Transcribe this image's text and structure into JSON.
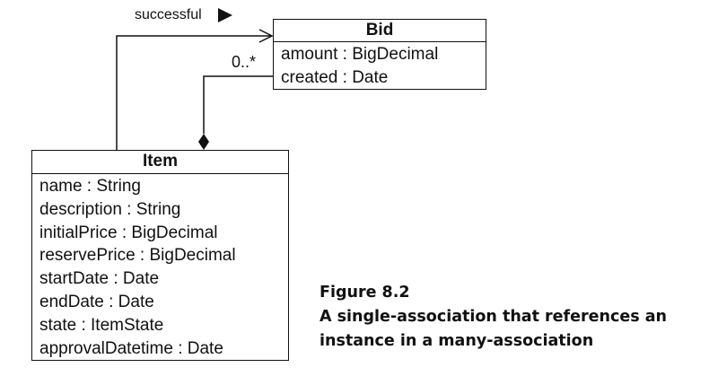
{
  "association": {
    "label": "successful",
    "multiplicity": "0..*"
  },
  "bid": {
    "name": "Bid",
    "attributes": [
      "amount : BigDecimal",
      "created : Date"
    ]
  },
  "item": {
    "name": "Item",
    "attributes": [
      "name : String",
      "description : String",
      "initialPrice : BigDecimal",
      "reservePrice : BigDecimal",
      "startDate : Date",
      "endDate : Date",
      "state : ItemState",
      "approvalDatetime : Date"
    ]
  },
  "caption": {
    "figure": "Figure 8.2",
    "line1": "A single-association that references an",
    "line2": "instance in a many-association"
  }
}
